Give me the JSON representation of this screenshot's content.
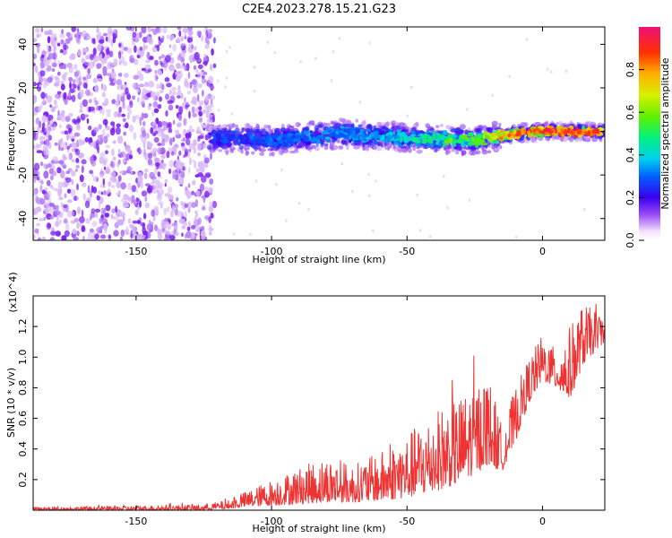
{
  "title": "C2E4.2023.278.15.21.G23",
  "colors": {
    "snr_line": "#ee3333",
    "spec_pale": "#d8b8f8",
    "spec_violet": "#7a1ef0"
  },
  "chart_data": [
    {
      "type": "heatmap",
      "name": "spectrogram",
      "xlabel": "Height of straight line (km)",
      "ylabel": "Frequency (Hz)",
      "xlim": [
        -188,
        23
      ],
      "ylim": [
        -50,
        48
      ],
      "xticks": [
        -150,
        -100,
        -50,
        0
      ],
      "yticks": [
        -40,
        -20,
        0,
        20,
        40
      ],
      "colorbar": {
        "label": "Normalized spectral amplitude",
        "range": [
          0,
          1
        ],
        "ticks": [
          0.0,
          0.2,
          0.4,
          0.6,
          0.8
        ],
        "colormap": "rainbow"
      },
      "regions": [
        {
          "x": [
            -188,
            -123
          ],
          "y": [
            -50,
            48
          ],
          "description_level": "noise",
          "amplitude": 0.15
        },
        {
          "x": [
            -123,
            23
          ],
          "y_center_line": [
            [
              -123,
              -3
            ],
            [
              -100,
              -4
            ],
            [
              -75,
              -1
            ],
            [
              -50,
              -3
            ],
            [
              -25,
              -4
            ],
            [
              -10,
              -1
            ],
            [
              0,
              0
            ],
            [
              23,
              0
            ]
          ],
          "amplitude_trend": [
            [
              -123,
              0.25
            ],
            [
              -50,
              0.4
            ],
            [
              -25,
              0.6
            ],
            [
              0,
              0.95
            ],
            [
              23,
              0.85
            ]
          ]
        }
      ]
    },
    {
      "type": "line",
      "name": "snr",
      "xlabel": "Height of straight line (km)",
      "ylabel": "SNR (10 * v/v)",
      "y_multiplier": "(x10^4)",
      "xlim": [
        -188,
        23
      ],
      "ylim": [
        0,
        1.4
      ],
      "xticks": [
        -150,
        -100,
        -50,
        0
      ],
      "yticks": [
        0.2,
        0.4,
        0.6,
        0.8,
        1.0,
        1.2
      ],
      "envelope": {
        "x": [
          -188,
          -150,
          -125,
          -115,
          -110,
          -100,
          -90,
          -80,
          -70,
          -60,
          -50,
          -40,
          -30,
          -20,
          -15,
          -10,
          -5,
          0,
          5,
          10,
          15,
          20,
          23
        ],
        "y_max": [
          0.02,
          0.03,
          0.04,
          0.07,
          0.12,
          0.2,
          0.28,
          0.35,
          0.3,
          0.38,
          0.5,
          0.65,
          0.75,
          0.9,
          0.55,
          0.8,
          1.0,
          1.15,
          1.05,
          1.2,
          1.35,
          1.3,
          1.28
        ],
        "y_min": [
          0.0,
          0.0,
          0.0,
          0.01,
          0.02,
          0.03,
          0.04,
          0.05,
          0.05,
          0.06,
          0.08,
          0.12,
          0.18,
          0.3,
          0.25,
          0.45,
          0.7,
          0.85,
          0.8,
          0.72,
          0.95,
          1.05,
          1.1
        ]
      }
    }
  ]
}
